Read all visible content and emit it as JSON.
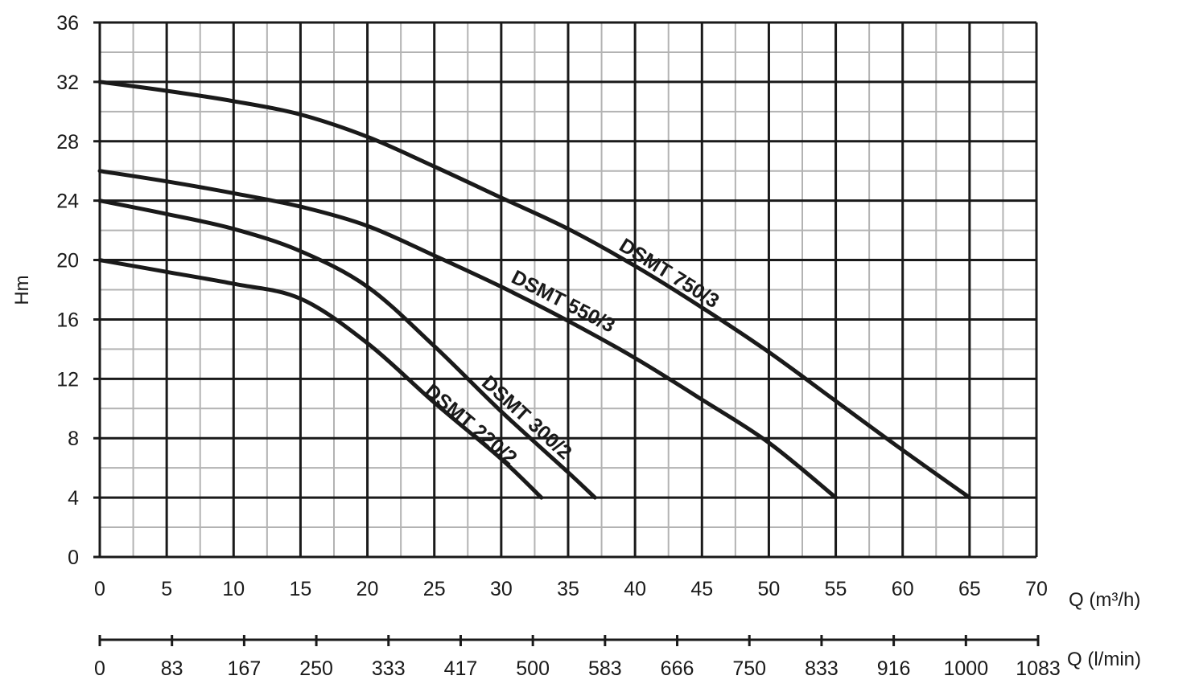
{
  "chart_data": {
    "type": "line",
    "ylabel": "Hm",
    "xlabel": "Q (m³/h)",
    "secondary_xlabel": "Q (l/min)",
    "xlim": [
      0,
      70
    ],
    "ylim": [
      0,
      36
    ],
    "x_ticks": [
      0,
      5,
      10,
      15,
      20,
      25,
      30,
      35,
      40,
      45,
      50,
      55,
      60,
      65,
      70
    ],
    "y_ticks": [
      0,
      4,
      8,
      12,
      16,
      20,
      24,
      28,
      32,
      36
    ],
    "secondary_x_ticks": [
      "0",
      "83",
      "167",
      "250",
      "333",
      "417",
      "500",
      "583",
      "666",
      "750",
      "833",
      "916",
      "1000",
      "1083"
    ],
    "grid": true,
    "series": [
      {
        "name": "DSMT 750/3",
        "points": [
          [
            0,
            32
          ],
          [
            5,
            31.4
          ],
          [
            10,
            30.7
          ],
          [
            15,
            29.8
          ],
          [
            20,
            28.3
          ],
          [
            25,
            26.3
          ],
          [
            30,
            24.2
          ],
          [
            35,
            22.1
          ],
          [
            40,
            19.6
          ],
          [
            45,
            16.8
          ],
          [
            50,
            13.8
          ],
          [
            55,
            10.5
          ],
          [
            60,
            7.2
          ],
          [
            65,
            4
          ]
        ]
      },
      {
        "name": "DSMT 550/3",
        "points": [
          [
            0,
            26
          ],
          [
            5,
            25.3
          ],
          [
            10,
            24.5
          ],
          [
            15,
            23.6
          ],
          [
            20,
            22.3
          ],
          [
            25,
            20.3
          ],
          [
            30,
            18.2
          ],
          [
            35,
            15.9
          ],
          [
            40,
            13.4
          ],
          [
            45,
            10.6
          ],
          [
            50,
            7.7
          ],
          [
            55,
            4
          ]
        ]
      },
      {
        "name": "DSMT 300/2",
        "points": [
          [
            0,
            24
          ],
          [
            5,
            23.1
          ],
          [
            10,
            22.1
          ],
          [
            15,
            20.6
          ],
          [
            20,
            18.2
          ],
          [
            25,
            14.2
          ],
          [
            30,
            9.8
          ],
          [
            35,
            5.7
          ],
          [
            37,
            4
          ]
        ]
      },
      {
        "name": "DSMT 220/2",
        "points": [
          [
            0,
            20
          ],
          [
            5,
            19.2
          ],
          [
            10,
            18.4
          ],
          [
            15,
            17.4
          ],
          [
            20,
            14.4
          ],
          [
            25,
            10.4
          ],
          [
            30,
            6.6
          ],
          [
            33,
            4
          ]
        ]
      }
    ]
  }
}
